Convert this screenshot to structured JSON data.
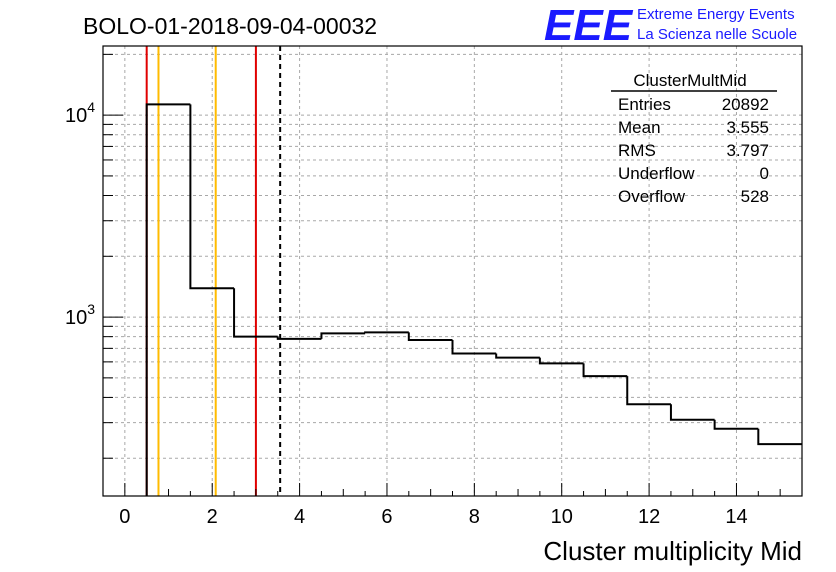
{
  "title": "BOLO-01-2018-09-04-00032",
  "logo": {
    "text": "EEE",
    "line1": "Extreme Energy Events",
    "line2": "La Scienza nelle Scuole",
    "color": "#1a1aff"
  },
  "stats": {
    "name": "ClusterMultMid",
    "rows": [
      {
        "label": "Entries",
        "value": "20892"
      },
      {
        "label": "Mean",
        "value": "3.555"
      },
      {
        "label": "RMS",
        "value": "3.797"
      },
      {
        "label": "Underflow",
        "value": "0"
      },
      {
        "label": "Overflow",
        "value": "528"
      }
    ]
  },
  "chart_data": {
    "type": "histogram",
    "xlabel": "Cluster multiplicity Mid",
    "ylabel": "",
    "xlim": [
      -0.5,
      15.5
    ],
    "ylim": [
      130,
      22000
    ],
    "log_y": true,
    "grid": true,
    "x_ticks": [
      "0",
      "2",
      "4",
      "6",
      "8",
      "10",
      "12",
      "14"
    ],
    "y_ticks": [
      {
        "base": "10",
        "exp": "3",
        "value": 1000
      },
      {
        "base": "10",
        "exp": "4",
        "value": 10000
      }
    ],
    "bins": {
      "low_edges": [
        0.5,
        1.5,
        2.5,
        3.5,
        4.5,
        5.5,
        6.5,
        7.5,
        8.5,
        9.5,
        10.5,
        11.5,
        12.5,
        13.5,
        14.5
      ],
      "width": 1,
      "counts": [
        11300,
        1390,
        800,
        780,
        830,
        840,
        770,
        660,
        630,
        590,
        510,
        370,
        310,
        280,
        235
      ]
    },
    "lines": [
      {
        "x": 0.5,
        "color": "#e00000",
        "style": "solid"
      },
      {
        "x": 0.77,
        "color": "#ffbb00",
        "style": "solid"
      },
      {
        "x": 2.08,
        "color": "#ffbb00",
        "style": "solid"
      },
      {
        "x": 3.0,
        "color": "#e00000",
        "style": "solid"
      },
      {
        "x": 3.555,
        "color": "#000000",
        "style": "dashed"
      }
    ]
  }
}
